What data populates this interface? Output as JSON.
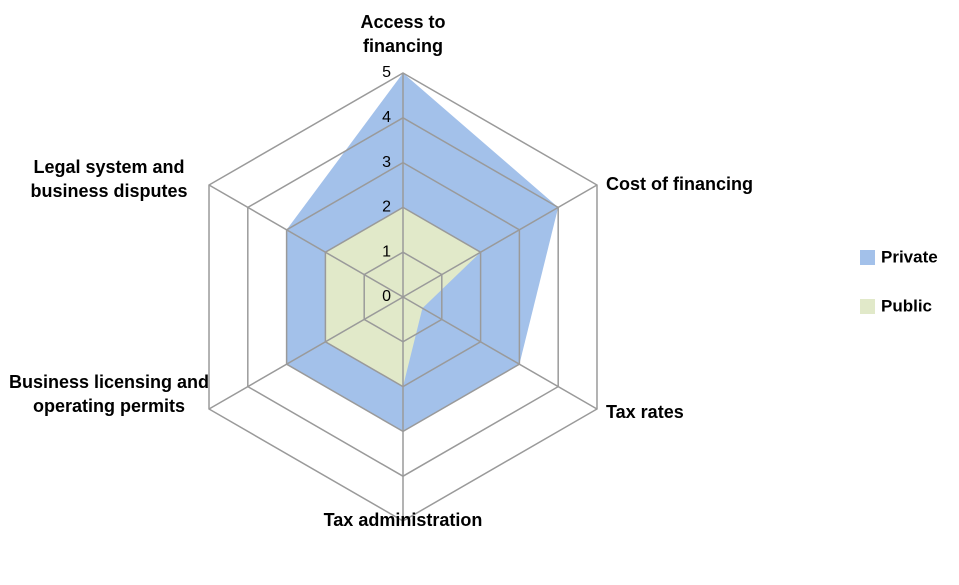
{
  "chart_data": {
    "type": "radar",
    "categories": [
      "Access to financing",
      "Cost of financing",
      "Tax rates",
      "Tax administration",
      "Business licensing and operating permits",
      "Legal system and business disputes"
    ],
    "series": [
      {
        "name": "Private",
        "color": "#a3c1ea",
        "values": [
          5,
          4,
          3,
          3,
          3,
          3
        ]
      },
      {
        "name": "Public",
        "color": "#e1e9c9",
        "values": [
          2,
          2,
          0.5,
          2,
          2,
          2
        ]
      }
    ],
    "ylim": [
      0,
      5
    ],
    "yticks": [
      0,
      1,
      2,
      3,
      4,
      5
    ],
    "grid": true,
    "legend": "right"
  }
}
